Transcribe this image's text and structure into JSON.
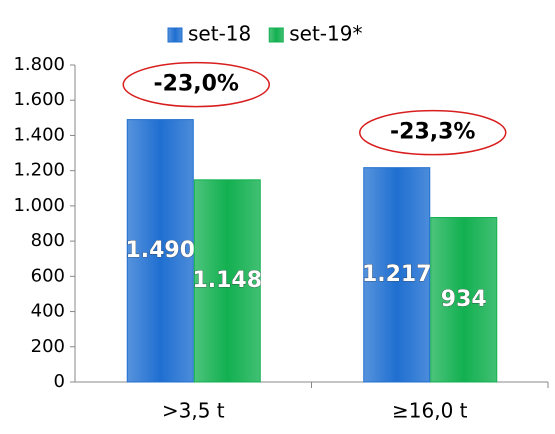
{
  "chart_data": {
    "type": "bar",
    "categories": [
      ">3,5 t",
      "≥16,0 t"
    ],
    "series": [
      {
        "name": "set-18",
        "color": "#1f6fd1",
        "values": [
          1490,
          1217
        ],
        "value_labels": [
          "1.490",
          "1.217"
        ]
      },
      {
        "name": "set-19*",
        "color": "#12b050",
        "values": [
          1148,
          934
        ],
        "value_labels": [
          "1.148",
          "934"
        ]
      }
    ],
    "ylim": [
      0,
      1800
    ],
    "yticks": [
      0,
      200,
      400,
      600,
      800,
      {
        "value": 1000,
        "label": "1.000"
      },
      {
        "value": 1200,
        "label": "1.200"
      },
      {
        "value": 1400,
        "label": "1.400"
      },
      {
        "value": 1600,
        "label": "1.600"
      },
      {
        "value": 1800,
        "label": "1.800"
      }
    ],
    "annotations": [
      "-23,0%",
      "-23,3%"
    ],
    "legend": "top"
  }
}
